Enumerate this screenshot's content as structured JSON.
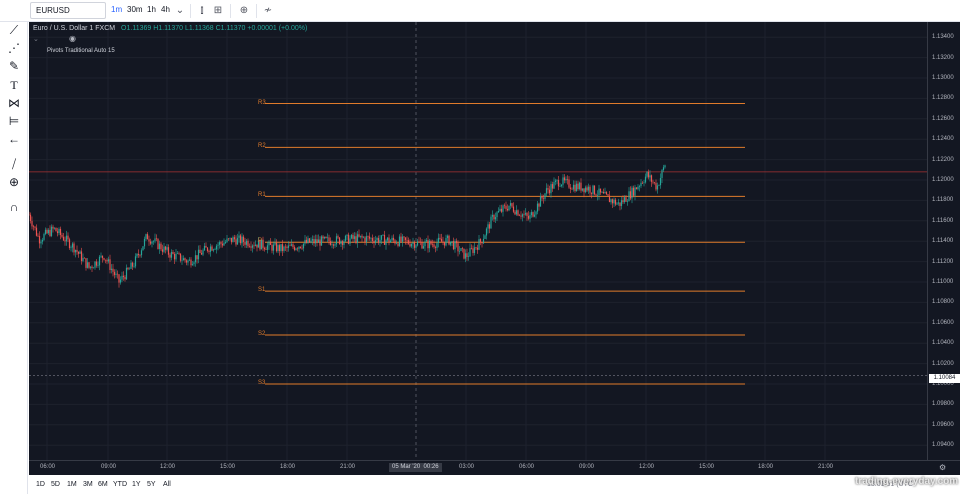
{
  "header": {
    "symbol": "EURUSD",
    "timeframes": [
      "1m",
      "30m",
      "1h",
      "4h"
    ],
    "active_timeframe": "1m"
  },
  "legend": {
    "title": "Euro / U.S. Dollar  1  FXCM",
    "ohlc": "O1.11369 H1.11370 L1.11368 C1.11370 +0.00001 (+0.00%)",
    "indicator": "Pivots Traditional Auto 15"
  },
  "pivots": [
    {
      "label": "R3",
      "price": 1.1275
    },
    {
      "label": "R2",
      "price": 1.1232
    },
    {
      "label": "R1",
      "price": 1.1184
    },
    {
      "label": "P",
      "price": 1.1139
    },
    {
      "label": "S1",
      "price": 1.1091
    },
    {
      "label": "S2",
      "price": 1.1048
    },
    {
      "label": "S3",
      "price": 1.1
    }
  ],
  "price_axis": [
    "1.13400",
    "1.13200",
    "1.13000",
    "1.12800",
    "1.12600",
    "1.12400",
    "1.12200",
    "1.12000",
    "1.11800",
    "1.11600",
    "1.11400",
    "1.11200",
    "1.11000",
    "1.10800",
    "1.10600",
    "1.10400",
    "1.10200",
    "1.10000",
    "1.09800",
    "1.09600",
    "1.09400"
  ],
  "last_price": "1.10084",
  "time_axis": [
    "06:00",
    "09:00",
    "12:00",
    "15:00",
    "18:00",
    "21:00",
    "03:00",
    "06:00",
    "09:00",
    "12:00",
    "15:00",
    "18:00",
    "21:00"
  ],
  "crosshair": {
    "date": "05 Mar '20",
    "time": "00:26"
  },
  "ranges": [
    "1D",
    "5D",
    "1M",
    "3M",
    "6M",
    "YTD",
    "1Y",
    "5Y",
    "All"
  ],
  "clock": "13:01:51 (UTC",
  "watermark": "trading-everyday.com",
  "colors": {
    "background": "#131722",
    "pivot": "#e07b2b",
    "up": "#26a69a",
    "down": "#ef5350",
    "hline": "#a83232"
  }
}
